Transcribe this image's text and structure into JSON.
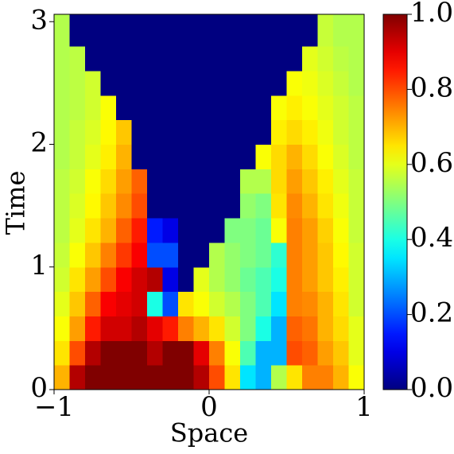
{
  "chart_data": {
    "type": "heatmap",
    "xlabel": "Space",
    "ylabel": "Time",
    "colormap": "jet",
    "x": [
      -0.95,
      -0.85,
      -0.75,
      -0.65,
      -0.55,
      -0.45,
      -0.35,
      -0.25,
      -0.15,
      -0.05,
      0.05,
      0.15,
      0.25,
      0.35,
      0.45,
      0.55,
      0.65,
      0.75,
      0.85,
      0.95
    ],
    "y": [
      0.1,
      0.3,
      0.5,
      0.7,
      0.9,
      1.1,
      1.3,
      1.5,
      1.7,
      1.9,
      2.1,
      2.3,
      2.5,
      2.7,
      2.9
    ],
    "z": [
      [
        0.7,
        0.95,
        1,
        1,
        1,
        1,
        1,
        1,
        1,
        0.95,
        0.8,
        0.65,
        0.35,
        0.3,
        0.55,
        0.65,
        0.75,
        0.75,
        0.7,
        0.62
      ],
      [
        0.65,
        0.8,
        0.95,
        1,
        1,
        1,
        0.95,
        1,
        1,
        0.9,
        0.75,
        0.62,
        0.45,
        0.3,
        0.3,
        0.8,
        0.78,
        0.72,
        0.68,
        0.6
      ],
      [
        0.62,
        0.72,
        0.85,
        0.92,
        0.92,
        0.95,
        0.9,
        0.85,
        0.75,
        0.7,
        0.65,
        0.58,
        0.5,
        0.4,
        0.3,
        0.78,
        0.76,
        0.7,
        0.66,
        0.6
      ],
      [
        0.6,
        0.68,
        0.78,
        0.88,
        0.9,
        0.92,
        0.4,
        0.2,
        0.65,
        0.62,
        0.58,
        0.55,
        0.5,
        0.45,
        0.35,
        0.75,
        0.74,
        0.7,
        0.65,
        0.58
      ],
      [
        0.58,
        0.65,
        0.72,
        0.8,
        0.88,
        0.92,
        0.95,
        0.1,
        0,
        0.6,
        0.55,
        0.52,
        0.48,
        0.45,
        0.4,
        0.75,
        0.72,
        0.68,
        0.64,
        0.58
      ],
      [
        0.57,
        0.62,
        0.68,
        0.75,
        0.82,
        0.88,
        0.2,
        0.2,
        0,
        0,
        0.55,
        0.52,
        0.5,
        0.48,
        0.42,
        0.75,
        0.72,
        0.68,
        0.63,
        0.58
      ],
      [
        0.56,
        0.6,
        0.65,
        0.7,
        0.78,
        0.85,
        0.15,
        0.1,
        0,
        0,
        0,
        0.5,
        0.5,
        0.48,
        0.62,
        0.75,
        0.72,
        0.67,
        0.62,
        0.57
      ],
      [
        0.56,
        0.59,
        0.63,
        0.68,
        0.74,
        0.8,
        0,
        0,
        0,
        0,
        0,
        0,
        0.52,
        0.5,
        0.65,
        0.74,
        0.7,
        0.65,
        0.61,
        0.57
      ],
      [
        0.56,
        0.58,
        0.62,
        0.66,
        0.72,
        0.78,
        0,
        0,
        0,
        0,
        0,
        0,
        0.55,
        0.55,
        0.66,
        0.72,
        0.68,
        0.64,
        0.6,
        0.57
      ],
      [
        0.55,
        0.57,
        0.6,
        0.64,
        0.7,
        0,
        0,
        0,
        0,
        0,
        0,
        0,
        0,
        0.62,
        0.66,
        0.7,
        0.66,
        0.62,
        0.59,
        0.56
      ],
      [
        0.55,
        0.57,
        0.59,
        0.63,
        0.68,
        0,
        0,
        0,
        0,
        0,
        0,
        0,
        0,
        0,
        0.64,
        0.66,
        0.64,
        0.61,
        0.58,
        0.56
      ],
      [
        0.55,
        0.56,
        0.58,
        0.62,
        0,
        0,
        0,
        0,
        0,
        0,
        0,
        0,
        0,
        0,
        0.62,
        0.64,
        0.62,
        0.6,
        0.58,
        0.56
      ],
      [
        0.55,
        0.56,
        0.58,
        0,
        0,
        0,
        0,
        0,
        0,
        0,
        0,
        0,
        0,
        0,
        0,
        0.62,
        0.61,
        0.59,
        0.57,
        0.55
      ],
      [
        0.55,
        0.56,
        0,
        0,
        0,
        0,
        0,
        0,
        0,
        0,
        0,
        0,
        0,
        0,
        0,
        0,
        0.6,
        0.58,
        0.56,
        0.55
      ],
      [
        0.55,
        0,
        0,
        0,
        0,
        0,
        0,
        0,
        0,
        0,
        0,
        0,
        0,
        0,
        0,
        0,
        0,
        0.57,
        0.55,
        0.55
      ]
    ],
    "xlim": [
      -1,
      1
    ],
    "ylim": [
      0,
      3.06
    ],
    "zlim": [
      0,
      1
    ],
    "xticks": [
      {
        "value": -1,
        "label": "−1"
      },
      0,
      1
    ],
    "yticks": [
      0,
      1,
      2,
      3
    ],
    "zticks": [
      {
        "value": 0,
        "label": "0.0"
      },
      0.2,
      0.4,
      0.6,
      0.8,
      {
        "value": 1,
        "label": "1.0"
      }
    ]
  }
}
